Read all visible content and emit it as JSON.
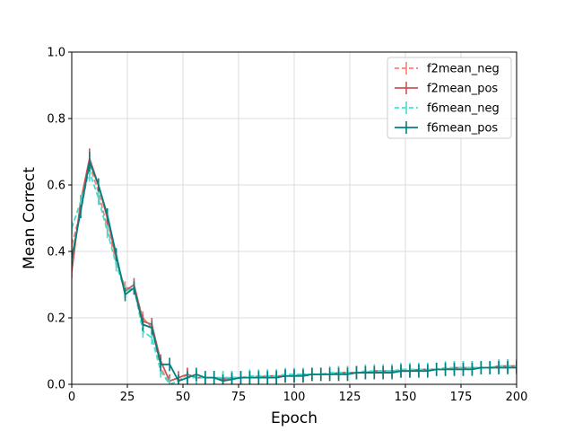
{
  "chart_data": {
    "type": "line",
    "title": "",
    "xlabel": "Epoch",
    "ylabel": "Mean Correct",
    "xlim": [
      0,
      200
    ],
    "ylim": [
      0,
      1.0
    ],
    "xticks": [
      0,
      25,
      50,
      75,
      100,
      125,
      150,
      175,
      200
    ],
    "yticks": [
      0.0,
      0.2,
      0.4,
      0.6,
      0.8,
      1.0
    ],
    "xtick_labels": [
      "0",
      "25",
      "50",
      "75",
      "100",
      "125",
      "150",
      "175",
      "200"
    ],
    "ytick_labels": [
      "0.0",
      "0.2",
      "0.4",
      "0.6",
      "0.8",
      "1.0"
    ],
    "grid": true,
    "legend_position": "top-right",
    "x": [
      0,
      4,
      8,
      12,
      16,
      20,
      24,
      28,
      32,
      36,
      40,
      44,
      48,
      52,
      56,
      60,
      64,
      68,
      72,
      76,
      80,
      84,
      88,
      92,
      96,
      100,
      104,
      108,
      112,
      116,
      120,
      124,
      128,
      132,
      136,
      140,
      144,
      148,
      152,
      156,
      160,
      164,
      168,
      172,
      176,
      180,
      184,
      188,
      192,
      196,
      200
    ],
    "series": [
      {
        "name": "f2mean_neg",
        "color": "#fa8072",
        "dashed": true,
        "values": [
          0.42,
          0.52,
          0.66,
          0.58,
          0.47,
          0.37,
          0.29,
          0.29,
          0.2,
          0.17,
          0.05,
          0.0,
          0.01,
          0.03,
          0.02,
          0.02,
          0.02,
          0.02,
          0.02,
          0.02,
          0.02,
          0.025,
          0.025,
          0.025,
          0.025,
          0.025,
          0.025,
          0.03,
          0.03,
          0.03,
          0.03,
          0.03,
          0.035,
          0.035,
          0.035,
          0.035,
          0.04,
          0.04,
          0.04,
          0.04,
          0.045,
          0.045,
          0.045,
          0.045,
          0.045,
          0.05,
          0.05,
          0.05,
          0.05,
          0.055,
          0.055
        ],
        "errors": [
          0.02,
          0.02,
          0.03,
          0.02,
          0.02,
          0.02,
          0.02,
          0.02,
          0.02,
          0.02,
          0.02,
          0.02,
          0.02,
          0.02,
          0.02,
          0.02,
          0.02,
          0.02,
          0.02,
          0.02,
          0.02,
          0.02,
          0.02,
          0.02,
          0.02,
          0.02,
          0.02,
          0.02,
          0.02,
          0.02,
          0.02,
          0.02,
          0.02,
          0.02,
          0.02,
          0.02,
          0.02,
          0.02,
          0.02,
          0.02,
          0.02,
          0.02,
          0.02,
          0.02,
          0.02,
          0.02,
          0.02,
          0.02,
          0.02,
          0.02,
          0.02
        ]
      },
      {
        "name": "f2mean_pos",
        "color": "#cd5555",
        "dashed": false,
        "values": [
          0.34,
          0.55,
          0.68,
          0.6,
          0.5,
          0.38,
          0.28,
          0.3,
          0.19,
          0.18,
          0.07,
          0.01,
          0.02,
          0.03,
          0.02,
          0.02,
          0.02,
          0.015,
          0.02,
          0.02,
          0.02,
          0.02,
          0.025,
          0.025,
          0.025,
          0.025,
          0.03,
          0.03,
          0.03,
          0.03,
          0.035,
          0.035,
          0.035,
          0.035,
          0.04,
          0.04,
          0.04,
          0.04,
          0.04,
          0.045,
          0.045,
          0.045,
          0.045,
          0.05,
          0.05,
          0.05,
          0.05,
          0.05,
          0.055,
          0.055,
          0.055
        ],
        "errors": [
          0.02,
          0.02,
          0.03,
          0.02,
          0.02,
          0.02,
          0.02,
          0.02,
          0.02,
          0.02,
          0.02,
          0.02,
          0.02,
          0.02,
          0.02,
          0.02,
          0.02,
          0.02,
          0.02,
          0.02,
          0.02,
          0.02,
          0.02,
          0.02,
          0.02,
          0.02,
          0.02,
          0.02,
          0.02,
          0.02,
          0.02,
          0.02,
          0.02,
          0.02,
          0.02,
          0.02,
          0.02,
          0.02,
          0.02,
          0.02,
          0.02,
          0.02,
          0.02,
          0.02,
          0.02,
          0.02,
          0.02,
          0.02,
          0.02,
          0.02,
          0.02
        ]
      },
      {
        "name": "f6mean_neg",
        "color": "#40e0d0",
        "dashed": true,
        "values": [
          0.47,
          0.55,
          0.64,
          0.56,
          0.46,
          0.36,
          0.28,
          0.29,
          0.16,
          0.14,
          0.04,
          0.0,
          0.01,
          0.02,
          0.02,
          0.02,
          0.02,
          0.02,
          0.02,
          0.02,
          0.025,
          0.025,
          0.025,
          0.025,
          0.03,
          0.03,
          0.03,
          0.03,
          0.03,
          0.035,
          0.035,
          0.035,
          0.035,
          0.04,
          0.04,
          0.04,
          0.04,
          0.045,
          0.045,
          0.045,
          0.045,
          0.045,
          0.05,
          0.05,
          0.05,
          0.05,
          0.05,
          0.05,
          0.055,
          0.055,
          0.055
        ],
        "errors": [
          0.02,
          0.02,
          0.03,
          0.02,
          0.02,
          0.02,
          0.02,
          0.02,
          0.02,
          0.02,
          0.02,
          0.02,
          0.02,
          0.02,
          0.02,
          0.02,
          0.02,
          0.02,
          0.02,
          0.02,
          0.02,
          0.02,
          0.02,
          0.02,
          0.02,
          0.02,
          0.02,
          0.02,
          0.02,
          0.02,
          0.02,
          0.02,
          0.02,
          0.02,
          0.02,
          0.02,
          0.02,
          0.02,
          0.02,
          0.02,
          0.02,
          0.02,
          0.02,
          0.02,
          0.02,
          0.02,
          0.02,
          0.02,
          0.02,
          0.02,
          0.02
        ]
      },
      {
        "name": "f6mean_pos",
        "color": "#008080",
        "dashed": false,
        "values": [
          0.38,
          0.52,
          0.67,
          0.6,
          0.51,
          0.39,
          0.27,
          0.29,
          0.18,
          0.17,
          0.06,
          0.06,
          0.01,
          0.02,
          0.03,
          0.02,
          0.02,
          0.01,
          0.015,
          0.02,
          0.02,
          0.02,
          0.02,
          0.02,
          0.025,
          0.025,
          0.025,
          0.03,
          0.03,
          0.03,
          0.03,
          0.03,
          0.035,
          0.035,
          0.035,
          0.035,
          0.035,
          0.04,
          0.04,
          0.04,
          0.04,
          0.045,
          0.045,
          0.045,
          0.045,
          0.045,
          0.05,
          0.05,
          0.05,
          0.05,
          0.05
        ],
        "errors": [
          0.02,
          0.02,
          0.03,
          0.02,
          0.02,
          0.02,
          0.02,
          0.02,
          0.02,
          0.02,
          0.02,
          0.02,
          0.02,
          0.02,
          0.02,
          0.02,
          0.02,
          0.02,
          0.02,
          0.02,
          0.02,
          0.02,
          0.02,
          0.02,
          0.02,
          0.02,
          0.02,
          0.02,
          0.02,
          0.02,
          0.02,
          0.02,
          0.02,
          0.02,
          0.02,
          0.02,
          0.02,
          0.02,
          0.02,
          0.02,
          0.02,
          0.02,
          0.02,
          0.02,
          0.02,
          0.02,
          0.02,
          0.02,
          0.02,
          0.02,
          0.02
        ]
      }
    ]
  }
}
